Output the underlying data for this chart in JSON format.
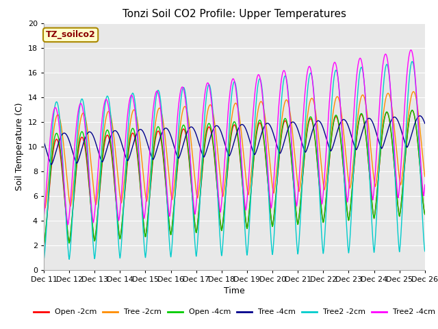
{
  "title": "Tonzi Soil CO2 Profile: Upper Temperatures",
  "xlabel": "Time",
  "ylabel": "Soil Temperature (C)",
  "ylim": [
    0,
    20
  ],
  "annotation_text": "TZ_soilco2",
  "annotation_color": "#8B0000",
  "annotation_bg": "#FFFFCC",
  "annotation_edge": "#AA8800",
  "bg_color": "#E8E8E8",
  "grid_color": "#FFFFFF",
  "series": [
    {
      "label": "Open -2cm",
      "color": "#FF0000"
    },
    {
      "label": "Tree -2cm",
      "color": "#FF8C00"
    },
    {
      "label": "Open -4cm",
      "color": "#00CC00"
    },
    {
      "label": "Tree -4cm",
      "color": "#00008B"
    },
    {
      "label": "Tree2 -2cm",
      "color": "#00CCCC"
    },
    {
      "label": "Tree2 -4cm",
      "color": "#FF00FF"
    }
  ],
  "title_fontsize": 11,
  "label_fontsize": 9,
  "tick_fontsize": 8,
  "legend_fontsize": 8
}
